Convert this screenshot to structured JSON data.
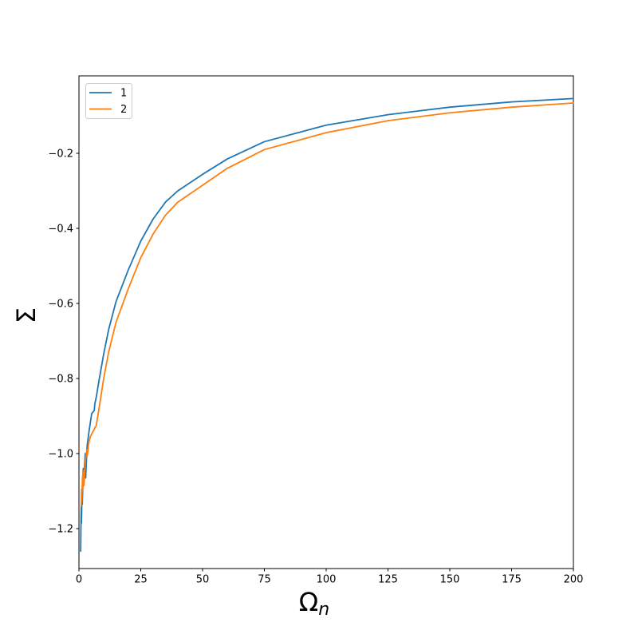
{
  "chart_data": {
    "type": "line",
    "title": "",
    "xlabel_base": "Ω",
    "xlabel_sub": "n",
    "ylabel": "Σ",
    "xlim": [
      0,
      200
    ],
    "ylim": [
      -1.3064,
      0.0064
    ],
    "grid": false,
    "background_color": "#ffffff",
    "spine_color": "#000000",
    "x_ticks": [
      {
        "v": 0,
        "label": "0"
      },
      {
        "v": 25,
        "label": "25"
      },
      {
        "v": 50,
        "label": "50"
      },
      {
        "v": 75,
        "label": "75"
      },
      {
        "v": 100,
        "label": "100"
      },
      {
        "v": 125,
        "label": "125"
      },
      {
        "v": 150,
        "label": "150"
      },
      {
        "v": 175,
        "label": "175"
      },
      {
        "v": 200,
        "label": "200"
      }
    ],
    "y_ticks": [
      {
        "v": -0.2,
        "label": "−0.2"
      },
      {
        "v": -0.4,
        "label": "−0.4"
      },
      {
        "v": -0.6,
        "label": "−0.6"
      },
      {
        "v": -0.8,
        "label": "−0.8"
      },
      {
        "v": -1.0,
        "label": "−1.0"
      },
      {
        "v": -1.2,
        "label": "−1.2"
      }
    ],
    "legend": {
      "position": "upper-left",
      "edge_color": "#cccccc",
      "entries": [
        "1",
        "2"
      ]
    },
    "series": [
      {
        "name": "1",
        "color": "#1f77b4",
        "x": [
          0.7,
          0.8,
          0.95,
          1.0,
          1.25,
          1.35,
          1.75,
          1.85,
          2.55,
          2.7,
          3.3,
          4.1,
          5.0,
          5.2,
          6.2,
          6.4,
          7,
          8,
          10,
          12,
          15,
          20,
          25,
          30,
          35,
          40,
          50,
          60,
          75,
          100,
          125,
          150,
          175,
          200
        ],
        "y": [
          -1.26,
          -1.195,
          -1.14,
          -1.185,
          -1.1,
          -1.135,
          -1.04,
          -1.075,
          -1.0,
          -1.065,
          -0.98,
          -0.94,
          -0.9,
          -0.893,
          -0.885,
          -0.868,
          -0.85,
          -0.81,
          -0.735,
          -0.67,
          -0.595,
          -0.51,
          -0.434,
          -0.375,
          -0.33,
          -0.3,
          -0.256,
          -0.215,
          -0.169,
          -0.125,
          -0.097,
          -0.077,
          -0.063,
          -0.054
        ]
      },
      {
        "name": "2",
        "color": "#ff7f0e",
        "x": [
          0.9,
          1.05,
          1.1,
          1.45,
          1.55,
          1.95,
          2.05,
          2.6,
          3.2,
          3.4,
          4.0,
          4.6,
          5.4,
          6.2,
          7,
          8,
          10,
          12,
          15,
          20,
          25,
          30,
          35,
          40,
          50,
          60,
          75,
          100,
          125,
          150,
          175,
          200
        ],
        "y": [
          -1.14,
          -1.095,
          -1.13,
          -1.06,
          -1.095,
          -1.045,
          -1.085,
          -1.02,
          -0.99,
          -1.005,
          -0.97,
          -0.955,
          -0.945,
          -0.935,
          -0.925,
          -0.885,
          -0.8,
          -0.73,
          -0.65,
          -0.56,
          -0.478,
          -0.415,
          -0.365,
          -0.33,
          -0.285,
          -0.24,
          -0.19,
          -0.145,
          -0.113,
          -0.092,
          -0.077,
          -0.066
        ]
      }
    ]
  }
}
